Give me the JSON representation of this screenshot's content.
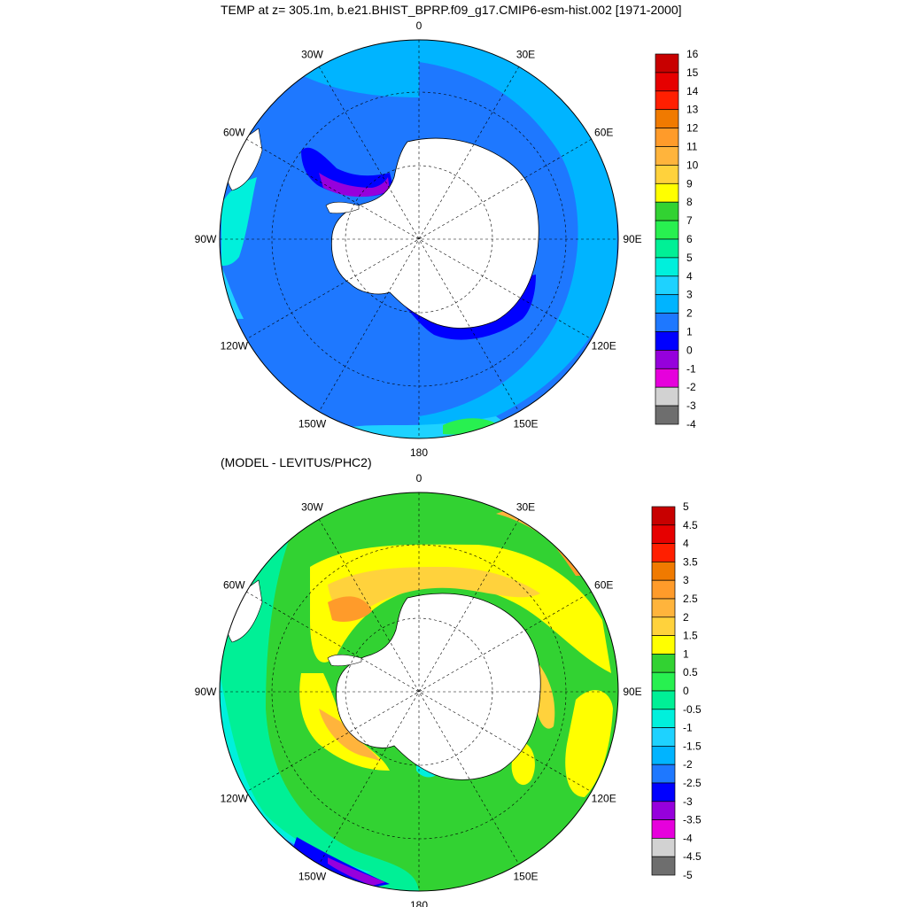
{
  "main_title": "TEMP at z= 305.1m, b.e21.BHIST_BPRP.f09_g17.CMIP6-esm-hist.002 [1971-2000]",
  "sub_title": "(MODEL - LEVITUS/PHC2)",
  "longitude_labels": [
    "0",
    "30E",
    "60E",
    "90E",
    "120E",
    "150E",
    "180",
    "150W",
    "120W",
    "90W",
    "60W",
    "30W"
  ],
  "colors": {
    "land": "#ffffff",
    "coast": "#000000",
    "graticule": "#000000"
  },
  "panel1": {
    "colorbar_labels": [
      "16",
      "15",
      "14",
      "13",
      "12",
      "11",
      "10",
      "9",
      "8",
      "7",
      "6",
      "5",
      "4",
      "3",
      "2",
      "1",
      "0",
      "-1",
      "-2",
      "-3",
      "-4"
    ],
    "colorbar_colors": [
      "#c80000",
      "#e60000",
      "#ff1f00",
      "#f07a00",
      "#ff9b2a",
      "#ffb43c",
      "#ffd23c",
      "#ffff00",
      "#32d232",
      "#28f050",
      "#00f096",
      "#00f0dc",
      "#1ed2ff",
      "#00b4ff",
      "#1e78ff",
      "#0000ff",
      "#9600dc",
      "#e600dc",
      "#d2d2d2",
      "#6e6e6e"
    ]
  },
  "panel2": {
    "colorbar_labels": [
      "5",
      "4.5",
      "4",
      "3.5",
      "3",
      "2.5",
      "2",
      "1.5",
      "1",
      "0.5",
      "0",
      "-0.5",
      "-1",
      "-1.5",
      "-2",
      "-2.5",
      "-3",
      "-3.5",
      "-4",
      "-4.5",
      "-5"
    ],
    "colorbar_colors": [
      "#c80000",
      "#e60000",
      "#ff1f00",
      "#f07a00",
      "#ff9b2a",
      "#ffb43c",
      "#ffd23c",
      "#ffff00",
      "#32d232",
      "#28f050",
      "#00f096",
      "#00f0dc",
      "#1ed2ff",
      "#00b4ff",
      "#1e78ff",
      "#0000ff",
      "#9600dc",
      "#e600dc",
      "#d2d2d2",
      "#6e6e6e"
    ]
  }
}
